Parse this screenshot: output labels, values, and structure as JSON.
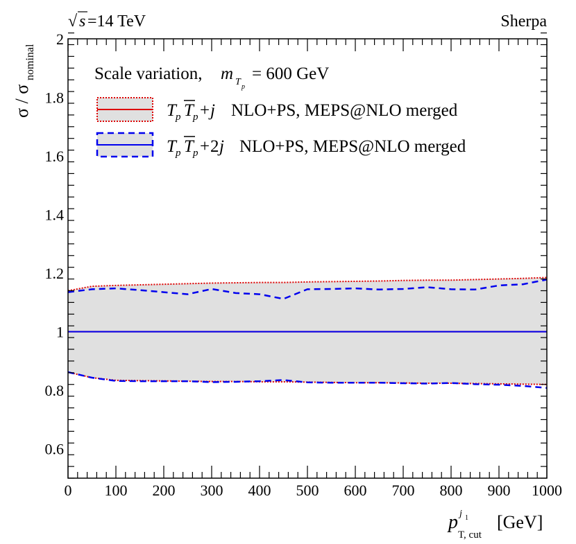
{
  "chart_data": {
    "type": "line",
    "header_left": "=14 TeV",
    "header_left_sqrt": "s",
    "header_right": "Sherpa",
    "ylabel": "σ / σ",
    "ylabel_sub": "nominal",
    "xlabel": "[GeV]",
    "xlabel_var": "p",
    "xlabel_sup": "j",
    "xlabel_sup_sub": "1",
    "xlabel_sub": "T, cut",
    "xlim": [
      0,
      1000
    ],
    "ylim": [
      0.5,
      2.0
    ],
    "xticks": [
      "0",
      "100",
      "200",
      "300",
      "400",
      "500",
      "600",
      "700",
      "800",
      "900",
      "1000"
    ],
    "yticks": [
      "0.6",
      "0.8",
      "1",
      "1.2",
      "1.4",
      "1.6",
      "1.8",
      "2"
    ],
    "legend": {
      "header_pre": "Scale variation,",
      "header_var": "m",
      "header_sub": "T",
      "header_subsub": "p",
      "header_post": "= 600 GeV",
      "entries": [
        {
          "formula": "Tₚ T̅ₚ +j",
          "text": "NLO+PS, MEPS@NLO merged"
        },
        {
          "formula": "Tₚ T̅ₚ +2j",
          "text": "NLO+PS, MEPS@NLO merged"
        }
      ]
    },
    "series": [
      {
        "name": "TpTp+j NLO+PS, MEPS@NLO merged",
        "color": "#dd0000",
        "x": [
          0,
          50,
          100,
          150,
          200,
          250,
          300,
          350,
          400,
          450,
          500,
          550,
          600,
          650,
          700,
          750,
          800,
          850,
          900,
          950,
          1000
        ],
        "central": [
          1,
          1,
          1,
          1,
          1,
          1,
          1,
          1,
          1,
          1,
          1,
          1,
          1,
          1,
          1,
          1,
          1,
          1,
          1,
          1,
          1
        ],
        "upper": [
          1.14,
          1.155,
          1.158,
          1.16,
          1.162,
          1.164,
          1.166,
          1.167,
          1.168,
          1.168,
          1.17,
          1.171,
          1.172,
          1.173,
          1.175,
          1.176,
          1.176,
          1.178,
          1.18,
          1.182,
          1.185
        ],
        "lower": [
          0.862,
          0.843,
          0.834,
          0.833,
          0.832,
          0.831,
          0.83,
          0.83,
          0.829,
          0.829,
          0.828,
          0.827,
          0.826,
          0.826,
          0.825,
          0.824,
          0.824,
          0.823,
          0.822,
          0.821,
          0.82
        ]
      },
      {
        "name": "TpTp+2j NLO+PS, MEPS@NLO merged",
        "color": "#0000ee",
        "x": [
          0,
          50,
          100,
          150,
          200,
          250,
          300,
          350,
          400,
          450,
          500,
          550,
          600,
          650,
          700,
          750,
          800,
          850,
          900,
          950,
          1000
        ],
        "central": [
          1,
          1,
          1,
          1,
          1,
          1,
          1,
          1,
          1,
          1,
          1,
          1,
          1,
          1,
          1,
          1,
          1,
          1,
          1,
          1,
          1
        ],
        "upper": [
          1.135,
          1.145,
          1.148,
          1.142,
          1.135,
          1.128,
          1.146,
          1.132,
          1.128,
          1.112,
          1.145,
          1.146,
          1.148,
          1.144,
          1.146,
          1.152,
          1.145,
          1.144,
          1.158,
          1.162,
          1.178
        ],
        "lower": [
          0.862,
          0.843,
          0.832,
          0.831,
          0.831,
          0.831,
          0.828,
          0.829,
          0.831,
          0.835,
          0.827,
          0.826,
          0.826,
          0.826,
          0.824,
          0.823,
          0.825,
          0.821,
          0.819,
          0.815,
          0.808
        ]
      }
    ]
  }
}
